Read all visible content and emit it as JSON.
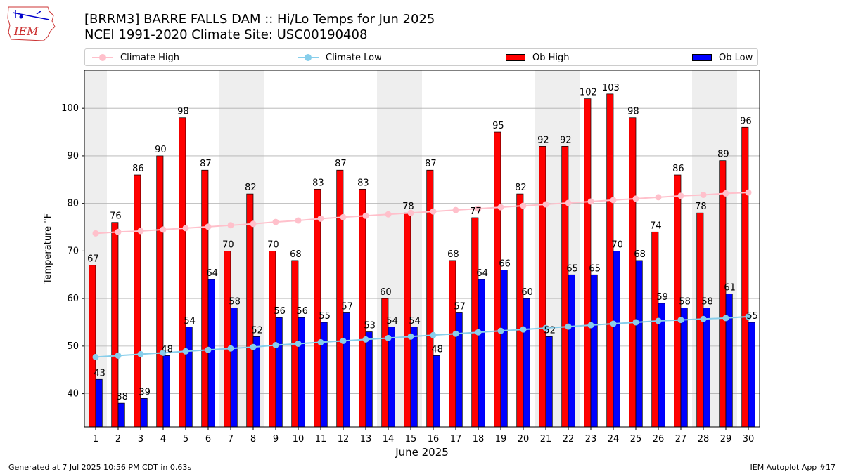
{
  "header": {
    "logo_text": "IEM",
    "title_line1": "[BRRM3] BARRE FALLS DAM :: Hi/Lo Temps for Jun 2025",
    "title_line2": "NCEI 1991-2020 Climate Site: USC00190408"
  },
  "legend": {
    "climate_high": "Climate High",
    "climate_low": "Climate Low",
    "ob_high": "Ob High",
    "ob_low": "Ob Low"
  },
  "colors": {
    "ob_high": "#ff0000",
    "ob_low": "#0000ff",
    "climate_high": "#ffc0cb",
    "climate_low": "#87ceeb",
    "weekend_shade": "#eeeeee",
    "grid": "#b0b0b0"
  },
  "footer": {
    "generated": "Generated at 7 Jul 2025 10:56 PM CDT in 0.63s",
    "app": "IEM Autoplot App #17"
  },
  "chart_data": {
    "type": "bar",
    "xlabel": "June 2025",
    "ylabel": "Temperature °F",
    "ylim": [
      33,
      108
    ],
    "yticks": [
      40,
      50,
      60,
      70,
      80,
      90,
      100
    ],
    "grid": true,
    "legend_position": "top",
    "categories": [
      "1",
      "2",
      "3",
      "4",
      "5",
      "6",
      "7",
      "8",
      "9",
      "10",
      "11",
      "12",
      "13",
      "14",
      "15",
      "16",
      "17",
      "18",
      "19",
      "20",
      "21",
      "22",
      "23",
      "24",
      "25",
      "26",
      "27",
      "28",
      "29",
      "30"
    ],
    "shaded_days": [
      1,
      7,
      8,
      14,
      15,
      21,
      22,
      28,
      29
    ],
    "series": [
      {
        "name": "Ob High",
        "kind": "bar",
        "values": [
          67,
          76,
          86,
          90,
          98,
          87,
          70,
          82,
          70,
          68,
          83,
          87,
          83,
          60,
          78,
          87,
          68,
          77,
          95,
          82,
          92,
          92,
          102,
          103,
          98,
          74,
          86,
          78,
          89,
          96
        ]
      },
      {
        "name": "Ob Low",
        "kind": "bar",
        "values": [
          43,
          38,
          39,
          48,
          54,
          64,
          58,
          52,
          56,
          56,
          55,
          57,
          53,
          54,
          54,
          48,
          57,
          64,
          66,
          60,
          52,
          65,
          65,
          70,
          68,
          59,
          58,
          58,
          61,
          55
        ]
      },
      {
        "name": "Climate High",
        "kind": "line",
        "values": [
          73.7,
          74.0,
          74.2,
          74.5,
          74.8,
          75.1,
          75.4,
          75.7,
          76.1,
          76.4,
          76.8,
          77.1,
          77.4,
          77.7,
          78.0,
          78.3,
          78.6,
          78.9,
          79.2,
          79.5,
          79.8,
          80.1,
          80.4,
          80.7,
          81.0,
          81.3,
          81.6,
          81.8,
          82.1,
          82.3
        ]
      },
      {
        "name": "Climate Low",
        "kind": "line",
        "values": [
          47.7,
          48.0,
          48.3,
          48.6,
          48.9,
          49.2,
          49.5,
          49.8,
          50.2,
          50.5,
          50.8,
          51.1,
          51.4,
          51.7,
          52.0,
          52.3,
          52.6,
          52.9,
          53.2,
          53.5,
          53.8,
          54.1,
          54.4,
          54.7,
          55.0,
          55.3,
          55.5,
          55.7,
          55.9,
          56.2
        ]
      }
    ]
  }
}
